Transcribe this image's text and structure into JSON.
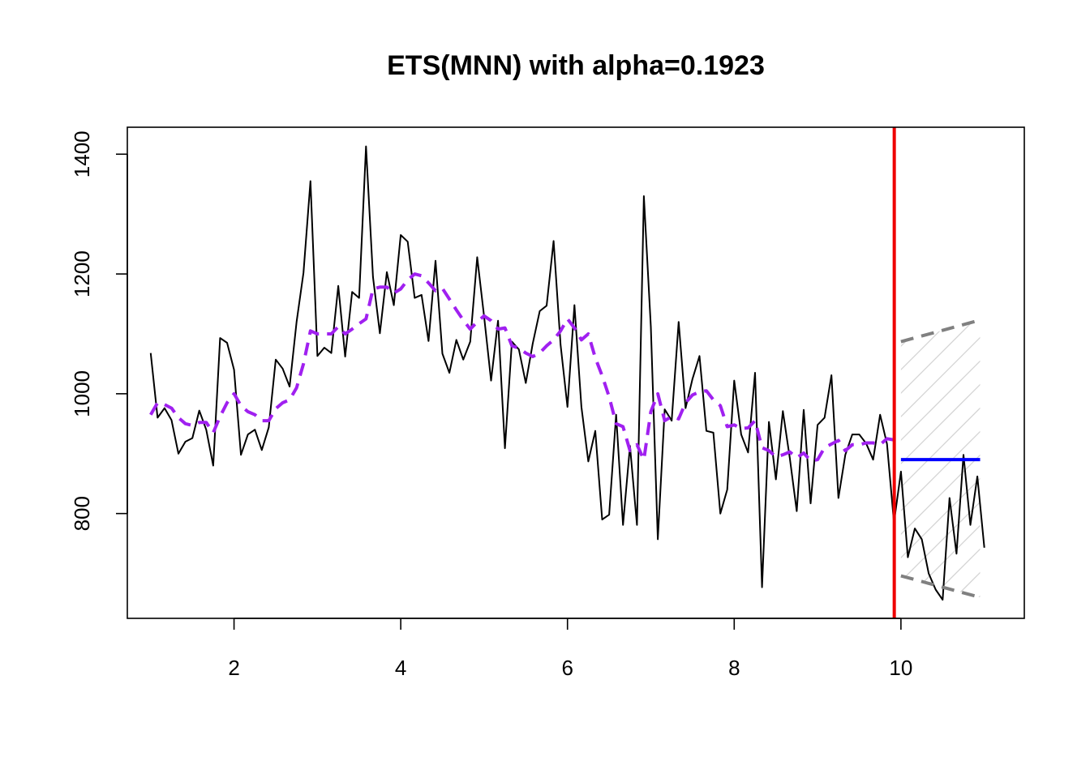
{
  "chart_data": {
    "type": "line",
    "title": "ETS(MNN) with alpha=0.1923",
    "xlabel": "",
    "ylabel": "",
    "xlim": [
      0.72,
      11.48
    ],
    "ylim": [
      625,
      1445
    ],
    "x_ticks": [
      2,
      4,
      6,
      8,
      10
    ],
    "x_tick_labels": [
      "2",
      "4",
      "6",
      "8",
      "10"
    ],
    "y_ticks": [
      800,
      1000,
      1200,
      1400
    ],
    "y_tick_labels": [
      "800",
      "1000",
      "1200",
      "1400"
    ],
    "grid": false,
    "legend": "none",
    "x_start": 1.0,
    "x_step": 0.0833333,
    "observed": [
      1068,
      960,
      976,
      956,
      900,
      920,
      926,
      972,
      940,
      880,
      1093,
      1085,
      1040,
      898,
      932,
      940,
      906,
      944,
      1057,
      1042,
      1012,
      1120,
      1202,
      1355,
      1063,
      1077,
      1068,
      1180,
      1062,
      1170,
      1160,
      1413,
      1195,
      1101,
      1203,
      1148,
      1265,
      1254,
      1160,
      1165,
      1088,
      1222,
      1067,
      1035,
      1090,
      1057,
      1087,
      1228,
      1129,
      1022,
      1122,
      909,
      1087,
      1074,
      1018,
      1084,
      1138,
      1147,
      1255,
      1082,
      978,
      1148,
      978,
      887,
      938,
      790,
      798,
      965,
      781,
      913,
      781,
      1330,
      1112,
      757,
      974,
      955,
      1120,
      976,
      1025,
      1063,
      938,
      935,
      800,
      840,
      1022,
      932,
      902,
      1035,
      677,
      953,
      857,
      971,
      893,
      804,
      973,
      817,
      948,
      960,
      1031,
      826,
      898,
      932,
      932,
      917,
      890,
      965,
      916,
      785
    ],
    "holdout": [
      785,
      870,
      727,
      775,
      757,
      700,
      673,
      656,
      826,
      733,
      898,
      781,
      862,
      743
    ],
    "fitted": [
      965,
      985,
      982,
      976,
      960,
      950,
      947,
      952,
      952,
      935,
      962,
      985,
      1000,
      980,
      970,
      965,
      955,
      955,
      975,
      985,
      990,
      1010,
      1050,
      1105,
      1100,
      1100,
      1100,
      1112,
      1100,
      1108,
      1117,
      1125,
      1175,
      1178,
      1178,
      1168,
      1175,
      1190,
      1200,
      1197,
      1185,
      1172,
      1176,
      1158,
      1140,
      1123,
      1108,
      1120,
      1130,
      1122,
      1108,
      1110,
      1080,
      1076,
      1068,
      1062,
      1068,
      1080,
      1090,
      1105,
      1125,
      1110,
      1090,
      1100,
      1060,
      1030,
      995,
      950,
      945,
      905,
      915,
      890,
      970,
      1000,
      955,
      962,
      958,
      985,
      998,
      1003,
      1005,
      990,
      980,
      945,
      948,
      942,
      943,
      955,
      910,
      905,
      895,
      898,
      903,
      893,
      901,
      888,
      890,
      910,
      916,
      922,
      905,
      915,
      915,
      918,
      918,
      915,
      925,
      923
    ],
    "forecast": 890,
    "upper_bound": [
      1087,
      1123
    ],
    "lower_bound": [
      696,
      660
    ],
    "holdout_start": 9.92,
    "forecast_range": [
      10.0,
      10.95
    ],
    "colors": {
      "observed": "#000000",
      "fitted": "#a020f0",
      "holdout_line": "#ee0000",
      "forecast": "#0000ff",
      "bounds": "#808080",
      "hatch": "#d3d3d3"
    }
  }
}
